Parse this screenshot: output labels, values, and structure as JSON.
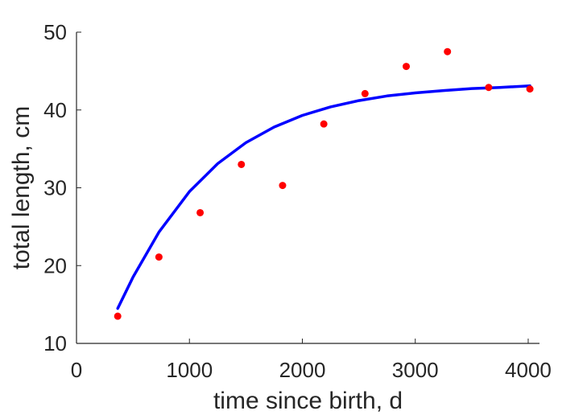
{
  "chart_data": {
    "type": "scatter",
    "xlabel": "time since birth, d",
    "ylabel": "total length, cm",
    "xlim": [
      0,
      4100
    ],
    "ylim": [
      10,
      50
    ],
    "x_ticks": [
      0,
      1000,
      2000,
      3000,
      4000
    ],
    "y_ticks": [
      10,
      20,
      30,
      40,
      50
    ],
    "grid": false,
    "series": [
      {
        "kind": "points",
        "color": "#ff0000",
        "x": [
          365,
          730,
          1095,
          1460,
          1825,
          2190,
          2555,
          2920,
          3285,
          3650,
          4015
        ],
        "y": [
          13.5,
          21.1,
          26.8,
          33.0,
          30.3,
          38.2,
          42.1,
          45.6,
          47.5,
          42.9,
          42.7
        ]
      },
      {
        "kind": "curve",
        "color": "#0000ff",
        "x": [
          365,
          500,
          730,
          1000,
          1250,
          1500,
          1750,
          2000,
          2250,
          2500,
          2750,
          3000,
          3250,
          3500,
          3750,
          4015
        ],
        "y": [
          14.5,
          18.5,
          24.3,
          29.5,
          33.1,
          35.8,
          37.8,
          39.3,
          40.4,
          41.2,
          41.8,
          42.2,
          42.5,
          42.75,
          42.9,
          43.1
        ]
      }
    ]
  }
}
